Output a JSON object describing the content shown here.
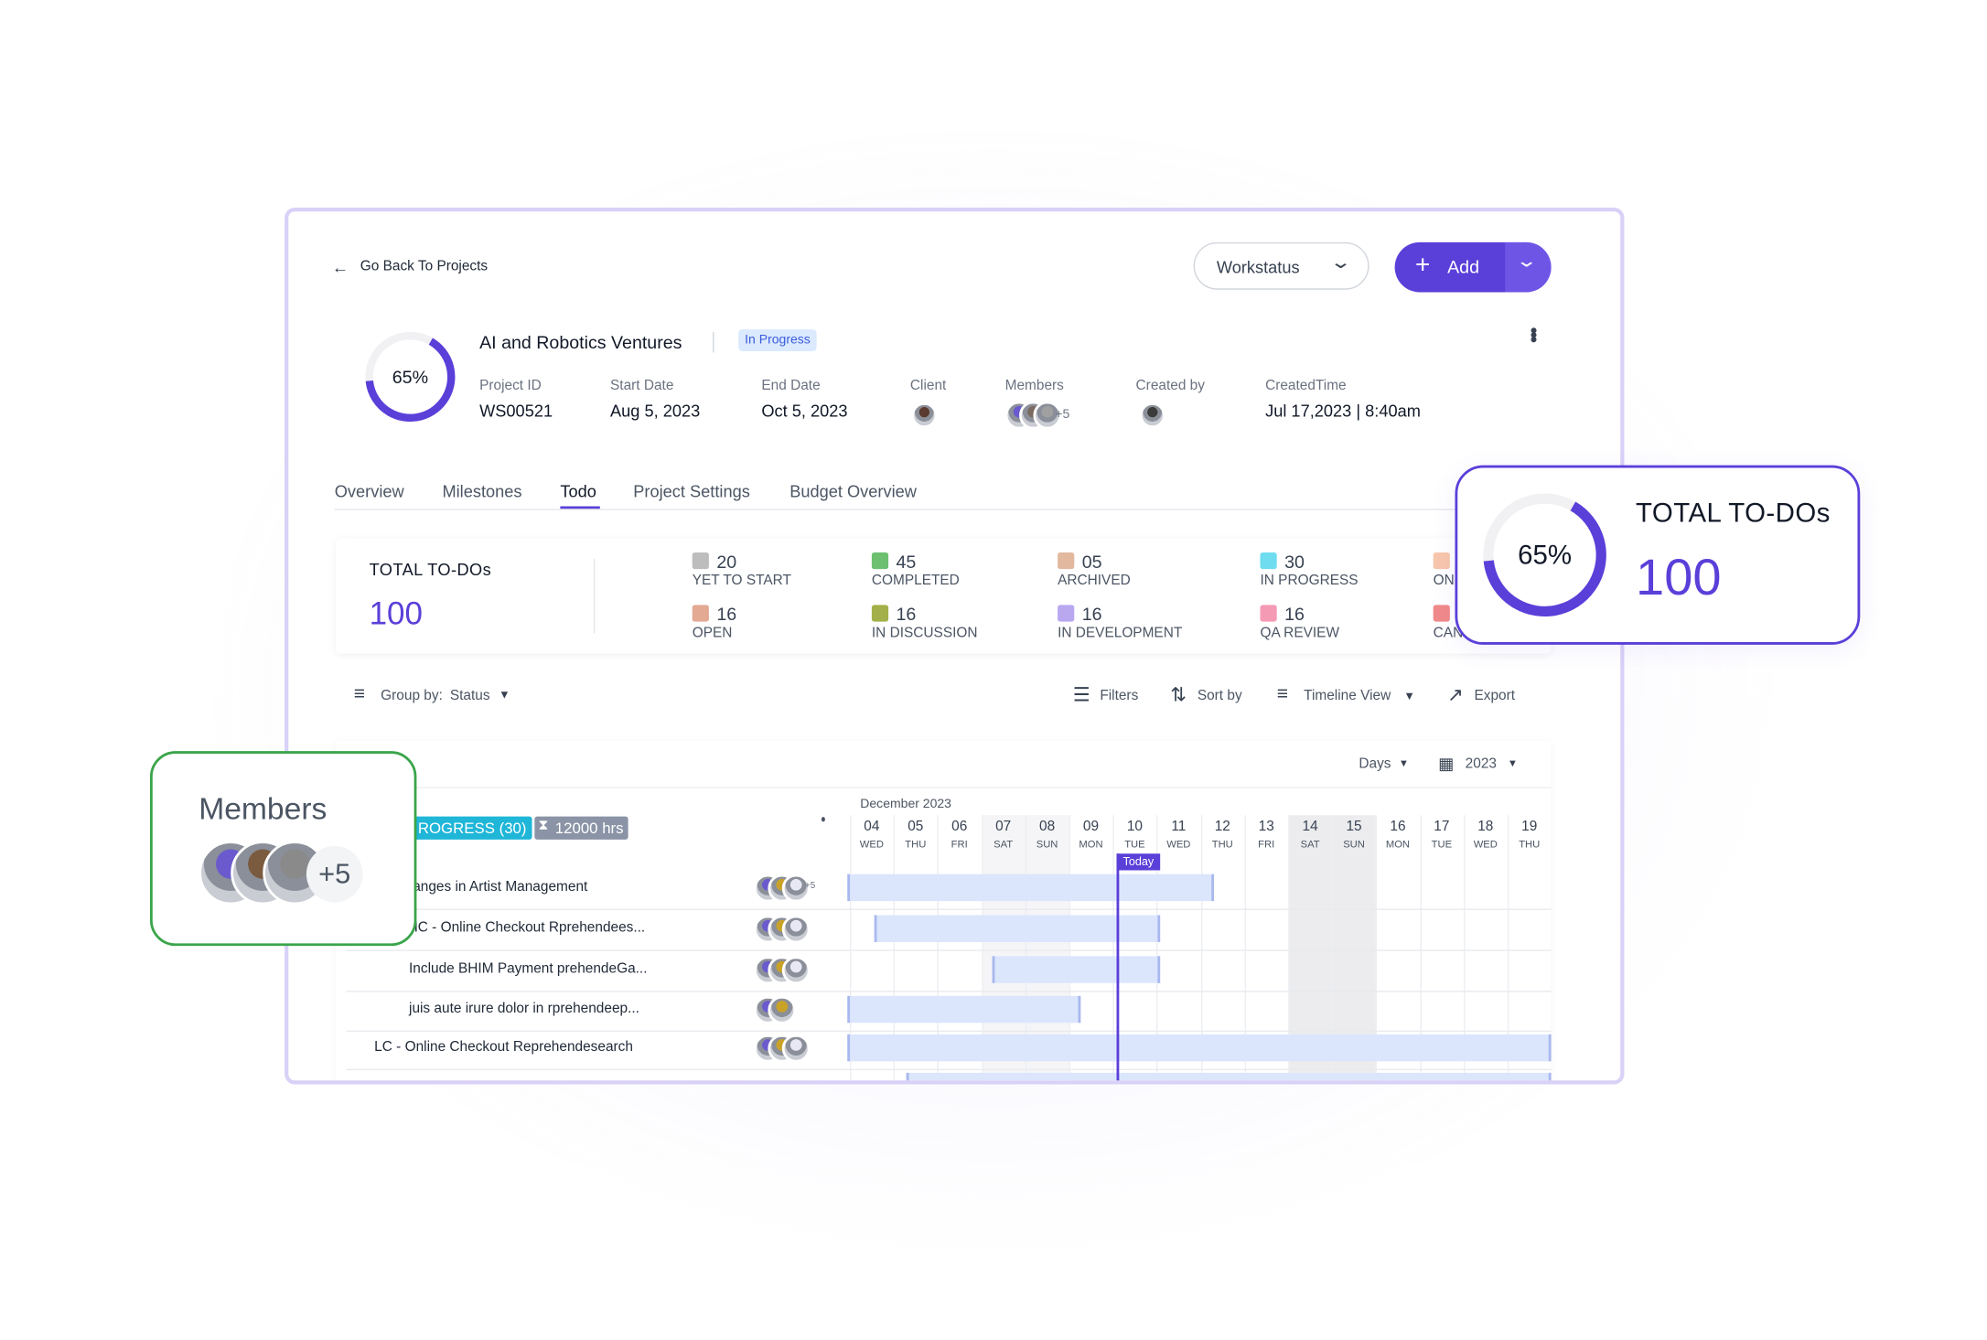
{
  "nav": {
    "back": "Go Back To Projects",
    "workspace": "Workstatus",
    "add": "Add"
  },
  "project": {
    "progress": {
      "value": 65,
      "label": "65%"
    },
    "name": "AI and Robotics Ventures",
    "status": "In Progress",
    "fields": [
      {
        "label": "Project ID",
        "value": "WS00521"
      },
      {
        "label": "Start Date",
        "value": "Aug 5, 2023"
      },
      {
        "label": "End Date",
        "value": "Oct 5, 2023"
      },
      {
        "label": "Client"
      },
      {
        "label": "Members",
        "value": "+5"
      },
      {
        "label": "Created by"
      },
      {
        "label": "CreatedTime",
        "value": "Jul 17,2023 | 8:40am"
      }
    ]
  },
  "tabs": [
    "Overview",
    "Milestones",
    "Todo",
    "Project Settings",
    "Budget Overview"
  ],
  "summary": {
    "title": "TOTAL TO-DOs",
    "total": "100",
    "statuses": [
      [
        {
          "count": "20",
          "label": "YET TO START",
          "color": "#bdbdbd"
        },
        {
          "count": "45",
          "label": "COMPLETED",
          "color": "#6cc070"
        },
        {
          "count": "05",
          "label": "ARCHIVED",
          "color": "#e2b89f"
        },
        {
          "count": "30",
          "label": "IN PROGRESS",
          "color": "#6fdcf0"
        },
        {
          "label": "ON",
          "color": "#f8c6ac"
        }
      ],
      [
        {
          "count": "16",
          "label": "OPEN",
          "color": "#e3a993"
        },
        {
          "count": "16",
          "label": "IN DISCUSSION",
          "color": "#a3b04a"
        },
        {
          "count": "16",
          "label": "IN DEVELOPMENT",
          "color": "#b9a8f0"
        },
        {
          "count": "16",
          "label": "QA REVIEW",
          "color": "#f59ab5"
        },
        {
          "label": "CAN",
          "color": "#f08a8a"
        }
      ]
    ]
  },
  "toolbar": {
    "group_by": "Group by:",
    "group_value": "Status",
    "filters": "Filters",
    "sort": "Sort by",
    "view": "Timeline View",
    "export": "Export",
    "scale": "Days",
    "year": "2023"
  },
  "timeline": {
    "month": "December 2023",
    "today": "Today",
    "group": "ROGRESS (30)",
    "hours": "12000 hrs",
    "days": [
      {
        "day": "04",
        "weekday": "WED"
      },
      {
        "day": "05",
        "weekday": "THU"
      },
      {
        "day": "06",
        "weekday": "FRI"
      },
      {
        "day": "07",
        "weekday": "SAT"
      },
      {
        "day": "08",
        "weekday": "SUN"
      },
      {
        "day": "09",
        "weekday": "MON"
      },
      {
        "day": "10",
        "weekday": "TUE"
      },
      {
        "day": "11",
        "weekday": "WED"
      },
      {
        "day": "12",
        "weekday": "THU"
      },
      {
        "day": "13",
        "weekday": "FRI"
      },
      {
        "day": "14",
        "weekday": "SAT"
      },
      {
        "day": "15",
        "weekday": "SUN"
      },
      {
        "day": "16",
        "weekday": "MON"
      },
      {
        "day": "17",
        "weekday": "TUE"
      },
      {
        "day": "18",
        "weekday": "WED"
      },
      {
        "day": "19",
        "weekday": "THU"
      }
    ],
    "rows": [
      {
        "name": "anges in Artist Management",
        "extra": "+5"
      },
      {
        "name": "HC - Online Checkout Rprehendees..."
      },
      {
        "name": "Include BHIM Payment prehendeGa..."
      },
      {
        "name": "juis aute irure dolor in rprehendeep..."
      },
      {
        "name": "LC - Online Checkout Reprehendesearch"
      }
    ]
  },
  "overlays": {
    "members": "Members",
    "members_extra": "+5",
    "todo_title": "TOTAL TO-DOs",
    "todo_total": "100"
  }
}
